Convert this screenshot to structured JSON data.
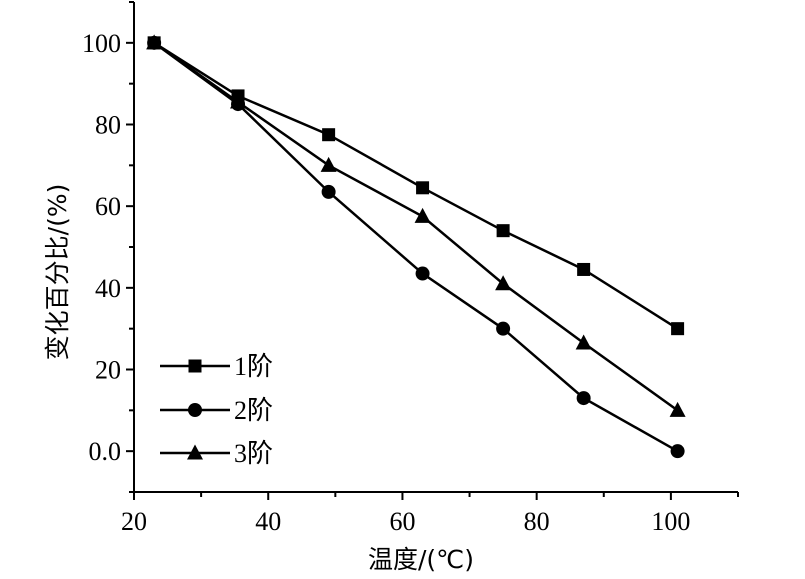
{
  "chart_data": {
    "type": "line",
    "title": "",
    "xlabel": "温度/(℃)",
    "ylabel": "变化百分比/(%)",
    "xlim": [
      20,
      110
    ],
    "ylim": [
      -10,
      110
    ],
    "x_ticks": [
      20,
      40,
      60,
      80,
      100
    ],
    "x_tick_labels": [
      "20",
      "40",
      "60",
      "80",
      "100"
    ],
    "y_ticks": [
      0,
      20,
      40,
      60,
      80,
      100
    ],
    "y_tick_labels": [
      "0.0",
      "20",
      "40",
      "60",
      "80",
      "100"
    ],
    "legend_position": "bottom-left",
    "x": [
      23,
      35.5,
      49,
      63,
      75,
      87,
      101
    ],
    "series": [
      {
        "name": "1阶",
        "marker": "square",
        "values": [
          100,
          87,
          77.5,
          64.5,
          54,
          44.5,
          30
        ]
      },
      {
        "name": "2阶",
        "marker": "circle",
        "values": [
          100,
          85,
          63.5,
          43.5,
          30,
          13,
          0
        ]
      },
      {
        "name": "3阶",
        "marker": "triangle",
        "values": [
          100,
          85.5,
          70,
          57.5,
          41,
          26.5,
          10
        ]
      }
    ]
  }
}
